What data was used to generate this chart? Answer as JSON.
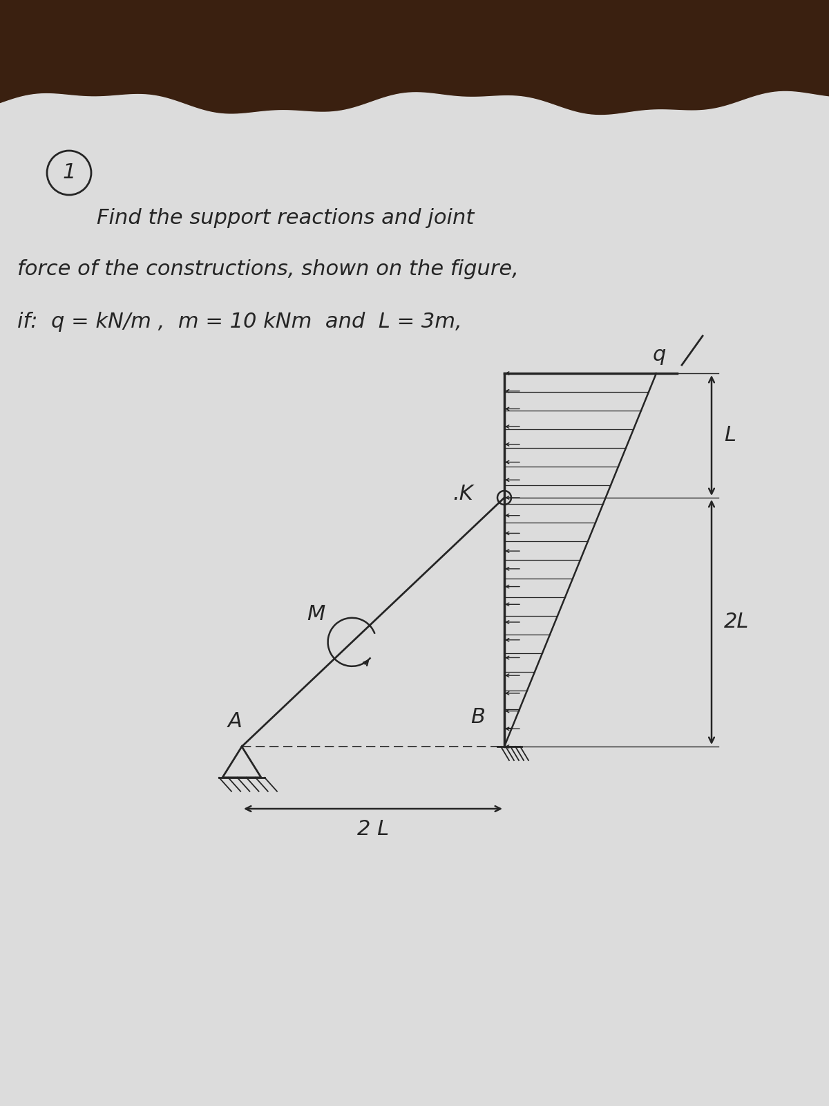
{
  "wood_color": "#3a2010",
  "paper_color": "#d8d8d8",
  "text_color": "#252525",
  "title_line1": "Find the support reactions and joint",
  "title_line2": "force of the constructions, shown on the figure,",
  "title_line3": "if:  q = kN/m ,  m = 10 kNm  and  L = 3m,",
  "circle_label": "1",
  "label_A": "A",
  "label_B": "B",
  "label_K": ".K",
  "label_M": "M",
  "label_q": "q",
  "label_L": "L",
  "label_2L_vert": "2L",
  "label_2L_horiz": "2 L"
}
